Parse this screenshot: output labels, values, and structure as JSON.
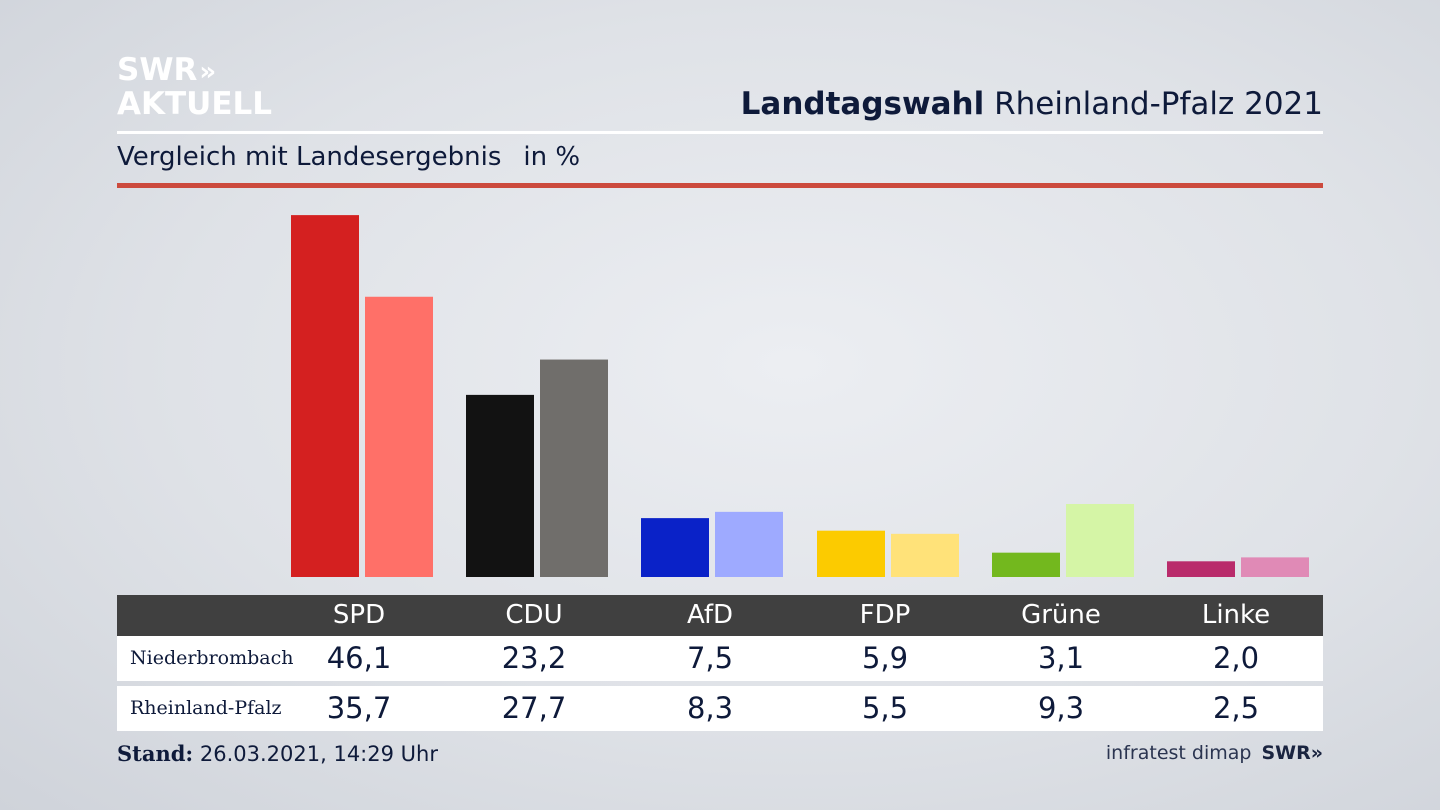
{
  "brand": {
    "line1": "SWR",
    "arrows": "»",
    "line2": "AKTUELL"
  },
  "header": {
    "title_bold": "Landtagswahl",
    "title_rest": "Rheinland-Pfalz 2021"
  },
  "subtitle": {
    "text": "Vergleich mit Landesergebnis",
    "unit": "in %"
  },
  "colors": {
    "accent_rule": "#cc4a3d",
    "table_header": "#404040"
  },
  "chart_data": {
    "type": "bar",
    "categories": [
      "SPD",
      "CDU",
      "AfD",
      "FDP",
      "Grüne",
      "Linke"
    ],
    "series": [
      {
        "name": "Niederbrombach",
        "values": [
          46.1,
          23.2,
          7.5,
          5.9,
          3.1,
          2.0
        ],
        "colors": [
          "#d42020",
          "#121212",
          "#0a22c8",
          "#fccb00",
          "#73b81e",
          "#b92b6b"
        ]
      },
      {
        "name": "Rheinland-Pfalz",
        "values": [
          35.7,
          27.7,
          8.3,
          5.5,
          9.3,
          2.5
        ],
        "colors": [
          "#ff7068",
          "#706e6b",
          "#9eaaff",
          "#ffe279",
          "#d5f5a6",
          "#e08ab6"
        ]
      }
    ]
  },
  "table": {
    "headers": [
      "SPD",
      "CDU",
      "AfD",
      "FDP",
      "Grüne",
      "Linke"
    ],
    "rows": [
      {
        "label": "Niederbrombach",
        "values": [
          "46,1",
          "23,2",
          "7,5",
          "5,9",
          "3,1",
          "2,0"
        ]
      },
      {
        "label": "Rheinland-Pfalz",
        "values": [
          "35,7",
          "27,7",
          "8,3",
          "5,5",
          "9,3",
          "2,5"
        ]
      }
    ]
  },
  "footer": {
    "stand_label": "Stand:",
    "stand_value": "26.03.2021, 14:29 Uhr",
    "source": "infratest dimap",
    "source_brand": "SWR»"
  }
}
